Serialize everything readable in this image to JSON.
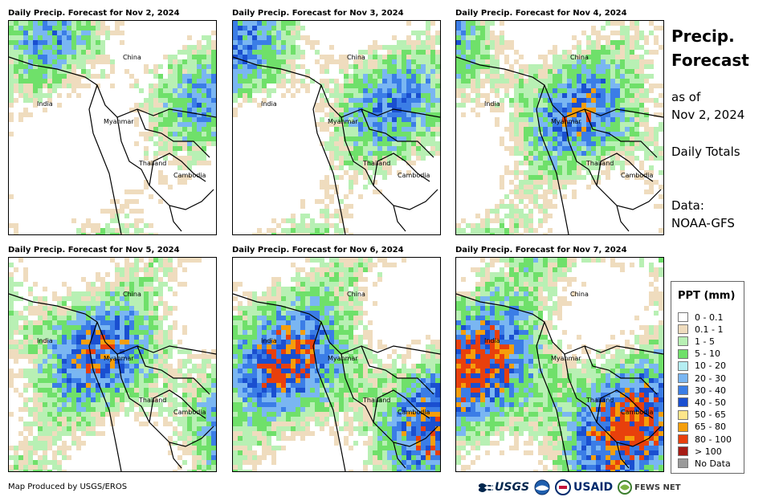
{
  "panels": [
    {
      "title": "Daily Precip. Forecast for Nov 2, 2024",
      "intensity": 0.15
    },
    {
      "title": "Daily Precip. Forecast for Nov 3, 2024",
      "intensity": 0.3
    },
    {
      "title": "Daily Precip. Forecast for Nov 4, 2024",
      "intensity": 0.45
    },
    {
      "title": "Daily Precip. Forecast for Nov 5, 2024",
      "intensity": 0.55
    },
    {
      "title": "Daily Precip. Forecast for Nov 6, 2024",
      "intensity": 0.7
    },
    {
      "title": "Daily Precip. Forecast for Nov 7, 2024",
      "intensity": 0.85
    }
  ],
  "labels": {
    "china": "China",
    "india": "India",
    "myanmar": "Myanmar",
    "thailand": "Thailand",
    "cambodia": "Cambodia"
  },
  "side": {
    "title_line1": "Precip.",
    "title_line2": "Forecast",
    "asof_line1": "as of",
    "asof_line2": "Nov 2, 2024",
    "totals": "Daily Totals",
    "data_line1": "Data:",
    "data_line2": "NOAA-GFS"
  },
  "legend": {
    "title": "PPT (mm)",
    "items": [
      {
        "label": "0 - 0.1",
        "color": "#ffffff"
      },
      {
        "label": "0.1 - 1",
        "color": "#efdcbe"
      },
      {
        "label": "1 - 5",
        "color": "#b8f0b4"
      },
      {
        "label": "5 - 10",
        "color": "#6fe06a"
      },
      {
        "label": "10 - 20",
        "color": "#b5eef2"
      },
      {
        "label": "20 - 30",
        "color": "#7ab6f2"
      },
      {
        "label": "30 - 40",
        "color": "#3b7de6"
      },
      {
        "label": "40 - 50",
        "color": "#1a4fd0"
      },
      {
        "label": "50 - 65",
        "color": "#fde68a"
      },
      {
        "label": "65 - 80",
        "color": "#f59e0b"
      },
      {
        "label": "80 - 100",
        "color": "#e8400c"
      },
      {
        "label": "> 100",
        "color": "#a61b14"
      },
      {
        "label": "No Data",
        "color": "#9a9a9a"
      }
    ]
  },
  "footer": {
    "credit": "Map Produced by USGS/EROS",
    "usgs": "USGS",
    "usaid": "USAID",
    "fewsnet": "FEWS NET"
  }
}
